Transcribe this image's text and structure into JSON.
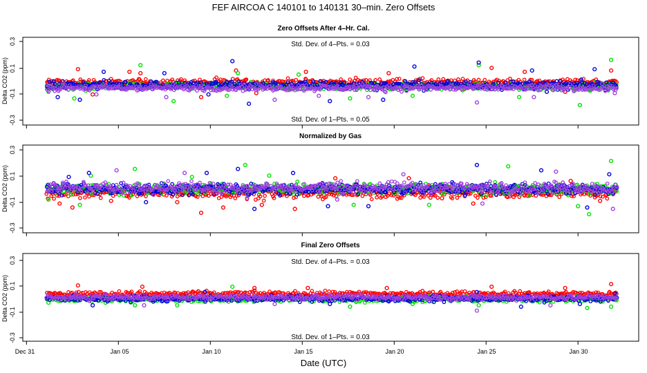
{
  "figure": {
    "title": "FEF   AIRCOA C   140101 to 140131   30–min. Zero Offsets",
    "xlabel": "Date (UTC)",
    "x_ticks": [
      "Dec 31",
      "Jan 05",
      "Jan 10",
      "Jan 15",
      "Jan 20",
      "Jan 25",
      "Jan 30"
    ],
    "x_tick_days": [
      0,
      5,
      10,
      15,
      20,
      25,
      30
    ],
    "xlim_days": [
      -0.2,
      33.3
    ],
    "y_ticks": [
      "0.3",
      "0.1",
      "-0.1",
      "-0.3"
    ],
    "y_tick_values": [
      0.3,
      0.1,
      -0.1,
      -0.3
    ],
    "ylim": [
      -0.33,
      0.33
    ],
    "ylabel": "Delta CO2 (ppm)",
    "colors": {
      "red": "#ff0000",
      "green": "#00e000",
      "blue": "#0000dd",
      "purple": "#a040e0",
      "black": "#000000"
    }
  },
  "chart_data": [
    {
      "type": "scatter",
      "title": "Zero Offsets After 4–Hr. Cal.",
      "annotation_top": "Std. Dev. of 4–Pts. =  0.03",
      "annotation_bottom": "Std. Dev. of 1–Pts. =  0.05",
      "xlim": [
        -0.2,
        33.3
      ],
      "ylim": [
        -0.33,
        0.33
      ],
      "ylabel": "Delta CO2 (ppm)",
      "x_range_days": [
        1.1,
        32.1
      ],
      "series": [
        {
          "color": "#ff0000",
          "center": -0.01,
          "spread": 0.04,
          "excursions": [
            [
              2.8,
              0.09
            ],
            [
              3.6,
              -0.1
            ],
            [
              5.6,
              0.07
            ],
            [
              6.2,
              0.06
            ],
            [
              9.5,
              -0.12
            ],
            [
              11.4,
              0.08
            ],
            [
              12.5,
              -0.09
            ],
            [
              15.2,
              0.07
            ],
            [
              19.7,
              0.06
            ],
            [
              23.8,
              -0.06
            ],
            [
              25.3,
              0.1
            ],
            [
              27.1,
              0.07
            ],
            [
              29.3,
              -0.08
            ],
            [
              31.8,
              0.08
            ]
          ]
        },
        {
          "color": "#00e000",
          "center": -0.04,
          "spread": 0.04,
          "excursions": [
            [
              1.2,
              -0.08
            ],
            [
              2.6,
              -0.13
            ],
            [
              6.2,
              0.12
            ],
            [
              8.0,
              -0.15
            ],
            [
              10.9,
              -0.11
            ],
            [
              11.5,
              0.06
            ],
            [
              14.8,
              0.05
            ],
            [
              17.6,
              -0.13
            ],
            [
              21.0,
              -0.11
            ],
            [
              24.6,
              0.12
            ],
            [
              26.8,
              -0.12
            ],
            [
              30.1,
              -0.18
            ],
            [
              31.8,
              0.16
            ]
          ]
        },
        {
          "color": "#0000dd",
          "center": -0.03,
          "spread": 0.045,
          "excursions": [
            [
              1.7,
              -0.12
            ],
            [
              2.9,
              -0.14
            ],
            [
              4.2,
              0.07
            ],
            [
              7.5,
              0.06
            ],
            [
              9.9,
              -0.1
            ],
            [
              11.2,
              0.15
            ],
            [
              12.1,
              -0.17
            ],
            [
              16.5,
              -0.15
            ],
            [
              19.4,
              -0.14
            ],
            [
              21.1,
              0.11
            ],
            [
              24.6,
              0.14
            ],
            [
              27.5,
              0.08
            ],
            [
              28.3,
              -0.08
            ],
            [
              30.9,
              0.09
            ]
          ]
        },
        {
          "color": "#a040e0",
          "center": -0.05,
          "spread": 0.035,
          "excursions": [
            [
              3.8,
              -0.1
            ],
            [
              7.6,
              -0.12
            ],
            [
              13.5,
              -0.14
            ],
            [
              15.9,
              -0.11
            ],
            [
              18.6,
              -0.12
            ],
            [
              24.5,
              -0.16
            ],
            [
              27.6,
              -0.12
            ],
            [
              32.0,
              -0.09
            ]
          ]
        }
      ]
    },
    {
      "type": "scatter",
      "title": "Normalized by Gas",
      "annotation_top": "",
      "annotation_bottom": "",
      "xlim": [
        -0.2,
        33.3
      ],
      "ylim": [
        -0.33,
        0.33
      ],
      "ylabel": "Delta CO2 (ppm)",
      "x_range_days": [
        1.1,
        32.1
      ],
      "baseline": {
        "color": "#000000",
        "value": 0.0,
        "spread": 0.03
      },
      "series": [
        {
          "color": "#ff0000",
          "center": -0.03,
          "spread": 0.06,
          "excursions": [
            [
              1.8,
              -0.11
            ],
            [
              2.5,
              -0.14
            ],
            [
              4.6,
              -0.09
            ],
            [
              8.2,
              -0.1
            ],
            [
              9.5,
              -0.18
            ],
            [
              10.7,
              -0.14
            ],
            [
              12.8,
              -0.12
            ],
            [
              14.6,
              -0.15
            ],
            [
              16.8,
              0.08
            ],
            [
              20.8,
              0.08
            ],
            [
              22.6,
              -0.07
            ],
            [
              24.3,
              -0.11
            ],
            [
              26.5,
              -0.06
            ],
            [
              29.6,
              0.06
            ],
            [
              31.2,
              -0.09
            ]
          ]
        },
        {
          "color": "#00e000",
          "center": 0.0,
          "spread": 0.06,
          "excursions": [
            [
              1.2,
              -0.08
            ],
            [
              2.9,
              -0.12
            ],
            [
              3.5,
              0.1
            ],
            [
              5.9,
              0.15
            ],
            [
              9.0,
              0.09
            ],
            [
              11.9,
              0.18
            ],
            [
              13.2,
              0.1
            ],
            [
              17.8,
              -0.12
            ],
            [
              21.9,
              -0.12
            ],
            [
              26.2,
              0.17
            ],
            [
              30.0,
              -0.13
            ],
            [
              30.6,
              -0.19
            ],
            [
              31.8,
              0.21
            ]
          ]
        },
        {
          "color": "#0000dd",
          "center": 0.0,
          "spread": 0.06,
          "excursions": [
            [
              2.3,
              0.09
            ],
            [
              3.4,
              0.12
            ],
            [
              6.5,
              -0.1
            ],
            [
              9.8,
              0.12
            ],
            [
              11.5,
              0.15
            ],
            [
              12.4,
              -0.15
            ],
            [
              14.5,
              0.12
            ],
            [
              16.4,
              -0.13
            ],
            [
              18.6,
              -0.13
            ],
            [
              24.5,
              0.18
            ],
            [
              28.0,
              0.14
            ],
            [
              30.5,
              -0.14
            ],
            [
              31.7,
              0.11
            ]
          ]
        },
        {
          "color": "#a040e0",
          "center": 0.01,
          "spread": 0.06,
          "excursions": [
            [
              1.5,
              0.04
            ],
            [
              4.9,
              0.14
            ],
            [
              8.6,
              0.12
            ],
            [
              12.0,
              -0.07
            ],
            [
              16.9,
              -0.08
            ],
            [
              20.5,
              0.11
            ],
            [
              24.8,
              -0.11
            ],
            [
              28.8,
              0.13
            ],
            [
              31.9,
              -0.15
            ]
          ]
        }
      ]
    },
    {
      "type": "scatter",
      "title": "Final Zero Offsets",
      "annotation_top": "Std. Dev. of 4–Pts. =  0.03",
      "annotation_bottom": "Std. Dev. of 1–Pts. =  0.03",
      "xlim": [
        -0.2,
        33.3
      ],
      "ylim": [
        -0.33,
        0.33
      ],
      "ylabel": "Delta CO2 (ppm)",
      "x_range_days": [
        1.1,
        32.1
      ],
      "series": [
        {
          "color": "#ff0000",
          "center": 0.025,
          "spread": 0.03,
          "excursions": [
            [
              2.8,
              0.09
            ],
            [
              6.3,
              0.08
            ],
            [
              12.4,
              0.07
            ],
            [
              15.3,
              0.07
            ],
            [
              19.6,
              0.07
            ],
            [
              25.3,
              0.08
            ],
            [
              29.3,
              0.07
            ],
            [
              31.8,
              0.1
            ]
          ]
        },
        {
          "color": "#00e000",
          "center": -0.015,
          "spread": 0.03,
          "excursions": [
            [
              1.2,
              -0.04
            ],
            [
              5.9,
              -0.06
            ],
            [
              8.2,
              -0.06
            ],
            [
              11.2,
              0.08
            ],
            [
              17.6,
              -0.07
            ],
            [
              21.0,
              -0.05
            ],
            [
              24.6,
              -0.06
            ],
            [
              30.5,
              -0.08
            ],
            [
              31.8,
              -0.07
            ]
          ]
        },
        {
          "color": "#0000dd",
          "center": -0.01,
          "spread": 0.03,
          "excursions": [
            [
              3.6,
              -0.06
            ],
            [
              9.7,
              0.04
            ],
            [
              16.5,
              -0.05
            ],
            [
              24.5,
              0.04
            ],
            [
              26.9,
              -0.07
            ],
            [
              30.1,
              -0.05
            ],
            [
              32.0,
              0.03
            ]
          ]
        },
        {
          "color": "#a040e0",
          "center": 0.0,
          "spread": 0.03,
          "excursions": [
            [
              6.4,
              -0.06
            ],
            [
              13.5,
              -0.05
            ],
            [
              24.5,
              -0.1
            ],
            [
              28.5,
              -0.06
            ]
          ]
        }
      ]
    }
  ]
}
